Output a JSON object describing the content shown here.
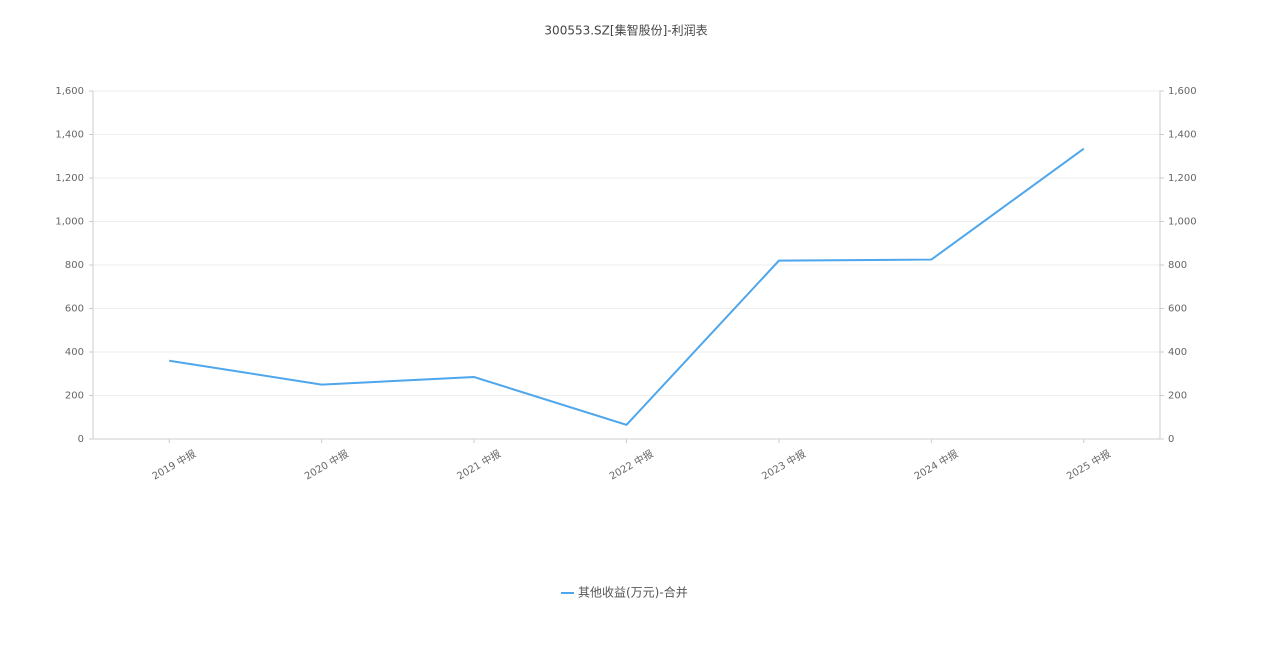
{
  "chart_data": {
    "type": "line",
    "title": "300553.SZ[集智股份]-利润表",
    "categories": [
      "2019 中报",
      "2020 中报",
      "2021 中报",
      "2022 中报",
      "2023 中报",
      "2024 中报",
      "2025 中报"
    ],
    "series": [
      {
        "name": "其他收益(万元)-合并",
        "color": "#4ea6ec",
        "values": [
          360,
          250,
          285,
          65,
          820,
          825,
          1335
        ]
      }
    ],
    "ylim": [
      0,
      1600
    ],
    "yticks": [
      0,
      200,
      400,
      600,
      800,
      {
        "value": 1000,
        "label": "1,000"
      },
      {
        "value": 1200,
        "label": "1,200"
      },
      {
        "value": 1400,
        "label": "1,400"
      },
      {
        "value": 1600,
        "label": "1,600"
      }
    ],
    "y2lim": [
      0,
      1600
    ],
    "y2ticks": [
      0,
      200,
      400,
      600,
      800,
      {
        "value": 1000,
        "label": "1,000"
      },
      {
        "value": 1200,
        "label": "1,200"
      },
      {
        "value": 1400,
        "label": "1,400"
      },
      {
        "value": 1600,
        "label": "1,600"
      }
    ],
    "grid": true,
    "legend": "bottom"
  }
}
